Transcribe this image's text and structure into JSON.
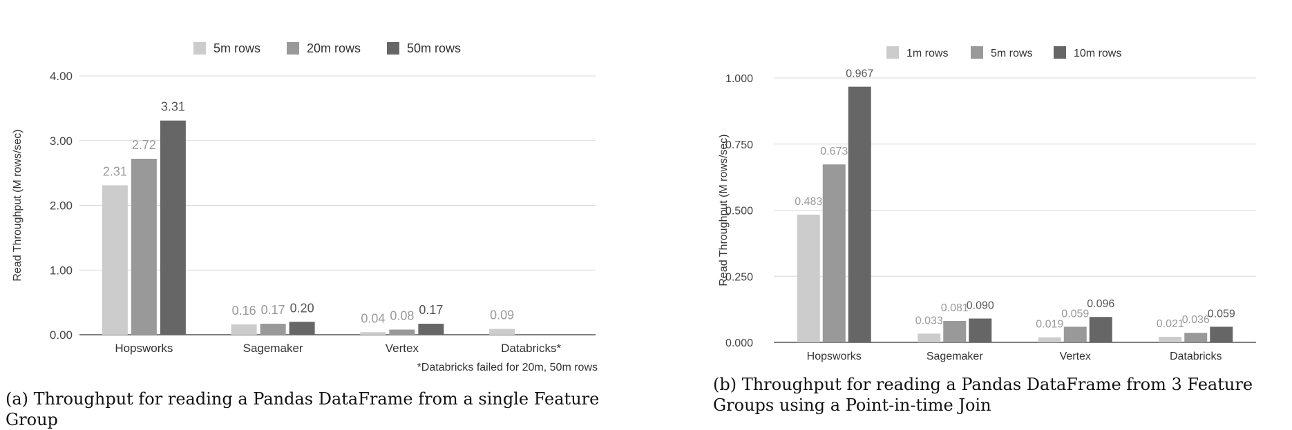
{
  "chart_data": [
    {
      "type": "bar",
      "caption": "(a) Throughput for reading a Pandas DataFrame from a single Feature Group",
      "ylabel": "Read  Throughput (M rows/sec)",
      "ylim": [
        0,
        4
      ],
      "yticks": [
        "0.00",
        "1.00",
        "2.00",
        "3.00",
        "4.00"
      ],
      "categories": [
        "Hopsworks",
        "Sagemaker",
        "Vertex",
        "Databricks*"
      ],
      "series": [
        {
          "name": "5m rows",
          "color": "#cccccc",
          "values": [
            2.31,
            0.16,
            0.04,
            0.09
          ],
          "labels": [
            "2.31",
            "0.16",
            "0.04",
            "0.09"
          ]
        },
        {
          "name": "20m rows",
          "color": "#999999",
          "values": [
            2.72,
            0.17,
            0.08,
            null
          ],
          "labels": [
            "2.72",
            "0.17",
            "0.08",
            ""
          ]
        },
        {
          "name": "50m rows",
          "color": "#666666",
          "values": [
            3.31,
            0.2,
            0.17,
            null
          ],
          "labels": [
            "3.31",
            "0.20",
            "0.17",
            ""
          ]
        }
      ],
      "footnote": "*Databricks failed for 20m, 50m rows",
      "grid": true,
      "legend": "top-center"
    },
    {
      "type": "bar",
      "caption": "(b) Throughput for reading a Pandas DataFrame from 3 Feature Groups using a Point-in-time Join",
      "ylabel": "Read Throughput (M rows/sec)",
      "ylim": [
        0,
        1
      ],
      "yticks": [
        "0.000",
        "0.250",
        "0.500",
        "0.750",
        "1.000"
      ],
      "categories": [
        "Hopsworks",
        "Sagemaker",
        "Vertex",
        "Databricks"
      ],
      "series": [
        {
          "name": "1m rows",
          "color": "#cccccc",
          "values": [
            0.483,
            0.033,
            0.019,
            0.021
          ],
          "labels": [
            "0.483",
            "0.033",
            "0.019",
            "0.021"
          ]
        },
        {
          "name": "5m rows",
          "color": "#999999",
          "values": [
            0.673,
            0.081,
            0.059,
            0.036
          ],
          "labels": [
            "0.673",
            "0.081",
            "0.059",
            "0.036"
          ]
        },
        {
          "name": "10m rows",
          "color": "#666666",
          "values": [
            0.967,
            0.09,
            0.096,
            0.059
          ],
          "labels": [
            "0.967",
            "0.090",
            "0.096",
            "0.059"
          ]
        }
      ],
      "footnote": "",
      "grid": true,
      "legend": "top-center"
    }
  ]
}
